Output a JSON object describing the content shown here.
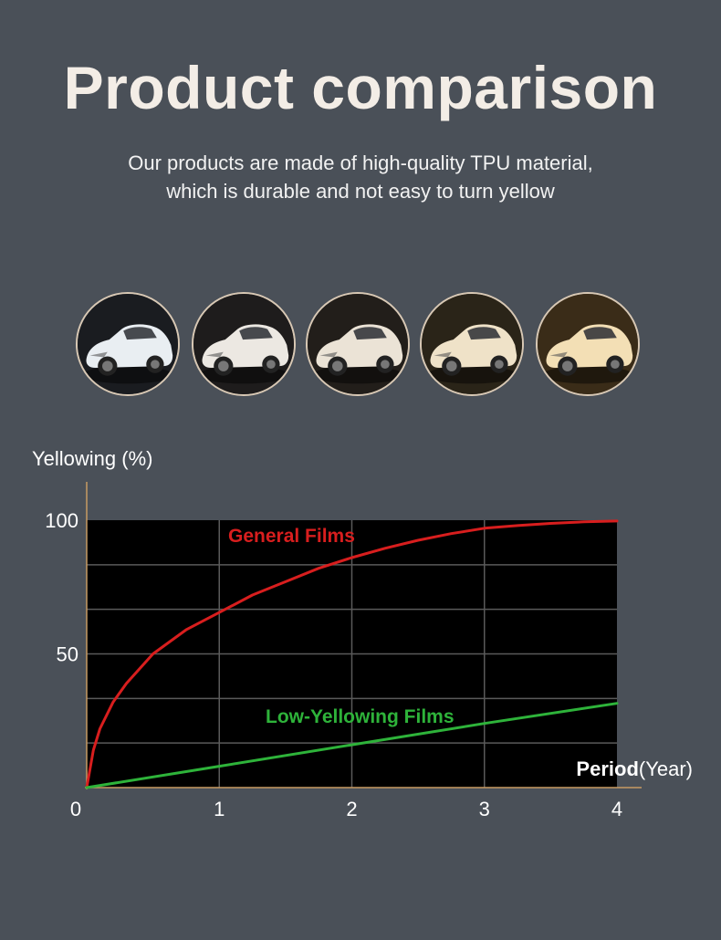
{
  "header": {
    "title": "Product comparison",
    "subtitle_line1": "Our products are made of high-quality TPU material,",
    "subtitle_line2": "which is durable and not easy to turn yellow"
  },
  "car_images": [
    {
      "name": "car-photo-1",
      "tint": "#e9eef2",
      "bg": "#1a1c20"
    },
    {
      "name": "car-photo-2",
      "tint": "#ece8e2",
      "bg": "#1e1c1c"
    },
    {
      "name": "car-photo-3",
      "tint": "#ebe3d6",
      "bg": "#221e1a"
    },
    {
      "name": "car-photo-4",
      "tint": "#efe2c8",
      "bg": "#2a2418"
    },
    {
      "name": "car-photo-5",
      "tint": "#f3dfb5",
      "bg": "#3a2c18"
    }
  ],
  "chart_data": {
    "type": "line",
    "ylabel": "Yellowing (%)",
    "xlabel_bold": "Period",
    "xlabel_rest": "(Year)",
    "xlim": [
      0,
      4
    ],
    "ylim": [
      0,
      100
    ],
    "x_ticks": [
      "0",
      "1",
      "2",
      "3",
      "4"
    ],
    "y_ticks": [
      "50",
      "100"
    ],
    "grid": true,
    "series": [
      {
        "name": "General Films",
        "color": "#d81e1e",
        "x": [
          0,
          0.05,
          0.1,
          0.2,
          0.3,
          0.5,
          0.75,
          1.0,
          1.25,
          1.5,
          1.75,
          2.0,
          2.25,
          2.5,
          2.75,
          3.0,
          3.25,
          3.5,
          3.75,
          4.0
        ],
        "y": [
          0,
          14,
          22,
          32,
          39,
          50,
          59,
          65.5,
          72,
          77,
          82,
          86,
          89.5,
          92.5,
          95,
          97,
          98,
          98.8,
          99.4,
          99.7
        ]
      },
      {
        "name": "Low-Yellowing Films",
        "color": "#2eb33a",
        "x": [
          0,
          1,
          2,
          3,
          4
        ],
        "y": [
          0,
          8,
          16,
          24,
          31.5
        ]
      }
    ]
  }
}
